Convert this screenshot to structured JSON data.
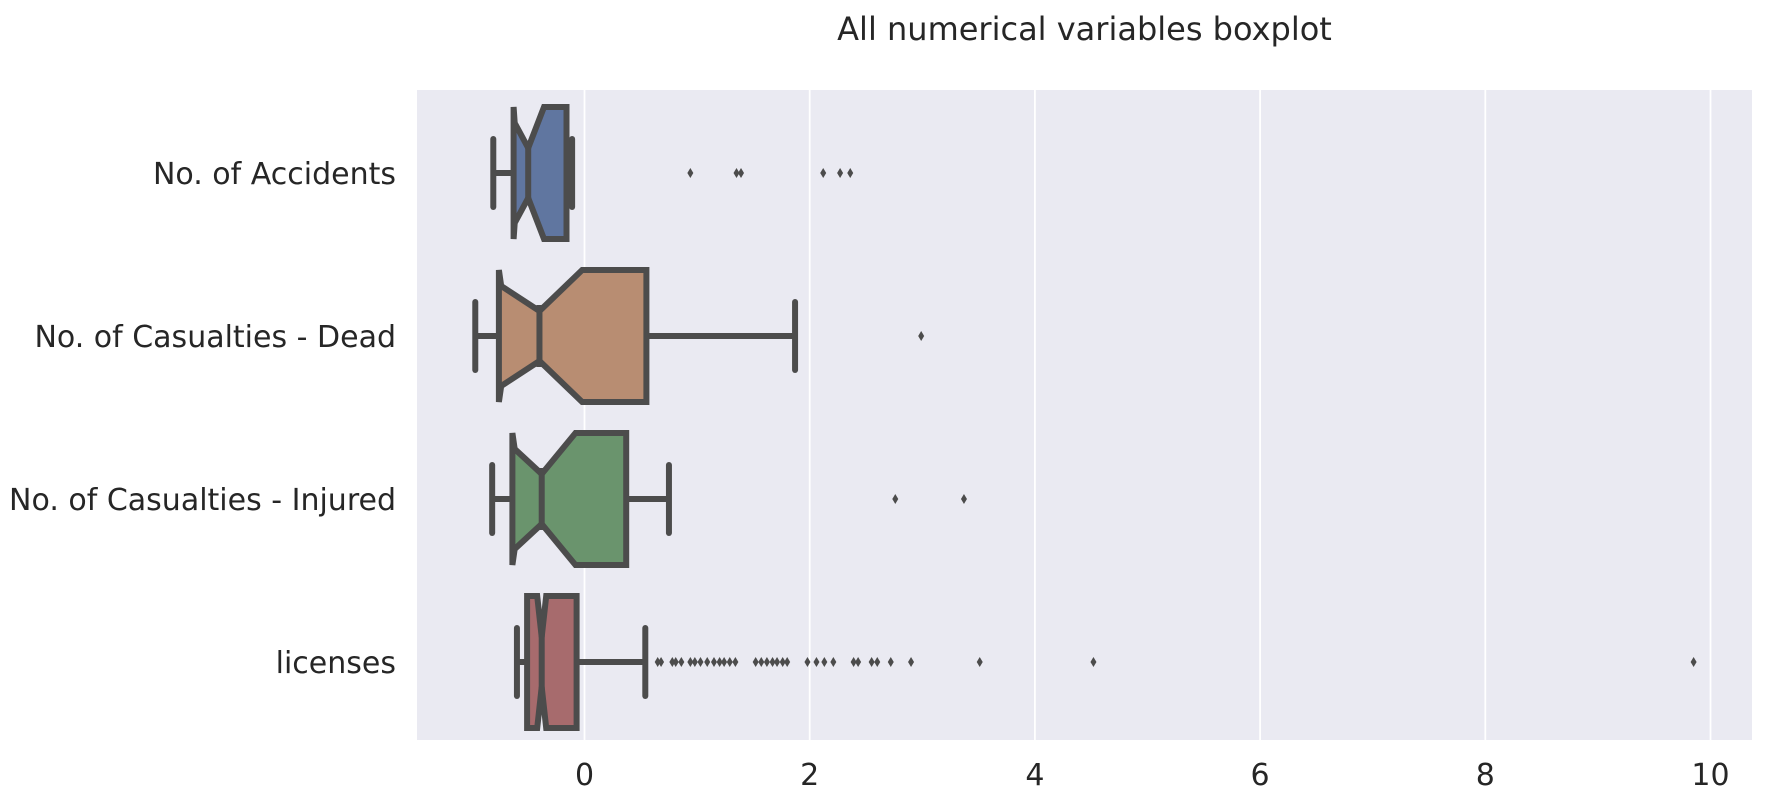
{
  "chart_data": {
    "type": "boxplot",
    "orientation": "horizontal",
    "notched": true,
    "title": "All numerical variables boxplot",
    "xlabel": "",
    "ylabel": "",
    "xlim": [
      -1.5,
      10.4
    ],
    "xticks": [
      0,
      2,
      4,
      6,
      8,
      10
    ],
    "xtick_labels": [
      "0",
      "2",
      "4",
      "6",
      "8",
      "10"
    ],
    "grid": true,
    "legend": "none",
    "categories": [
      "No. of Accidents",
      "No. of Casualties - Dead",
      "No. of Casualties - Injured",
      "licenses"
    ],
    "boxes": [
      {
        "label": "No. of Accidents",
        "color": "#6076a0",
        "whisker_low": -0.81,
        "q1": -0.62,
        "median": -0.5,
        "q3": -0.16,
        "whisker_high": -0.11,
        "notch_low": -0.63,
        "notch_high": -0.36,
        "outliers": [
          0.94,
          1.35,
          1.39,
          2.12,
          2.27,
          2.36
        ]
      },
      {
        "label": "No. of Casualties - Dead",
        "color": "#b88d72",
        "whisker_low": -0.97,
        "q1": -0.74,
        "median": -0.4,
        "q3": 0.55,
        "whisker_high": 1.87,
        "notch_low": -0.76,
        "notch_high": -0.02,
        "outliers": [
          2.99
        ]
      },
      {
        "label": "No. of Casualties - Injured",
        "color": "#6a946d",
        "whisker_low": -0.82,
        "q1": -0.62,
        "median": -0.38,
        "q3": 0.37,
        "whisker_high": 0.75,
        "notch_low": -0.64,
        "notch_high": -0.08,
        "outliers": [
          2.76,
          3.37
        ]
      },
      {
        "label": "licenses",
        "color": "#a76b6d",
        "whisker_low": -0.6,
        "q1": -0.51,
        "median": -0.38,
        "q3": -0.07,
        "whisker_high": 0.54,
        "notch_low": -0.42,
        "notch_high": -0.34,
        "outliers": [
          0.65,
          0.68,
          0.78,
          0.81,
          0.86,
          0.94,
          0.98,
          1.03,
          1.09,
          1.15,
          1.2,
          1.24,
          1.29,
          1.34,
          1.52,
          1.57,
          1.62,
          1.67,
          1.71,
          1.76,
          1.8,
          1.98,
          2.06,
          2.13,
          2.21,
          2.39,
          2.43,
          2.55,
          2.6,
          2.72,
          2.9,
          3.51,
          4.52,
          9.85
        ]
      }
    ]
  },
  "style": {
    "plot_background": "#eaeaf2",
    "grid_color": "#ffffff",
    "line_color": "#4c4c4c",
    "text_color": "#262626"
  }
}
